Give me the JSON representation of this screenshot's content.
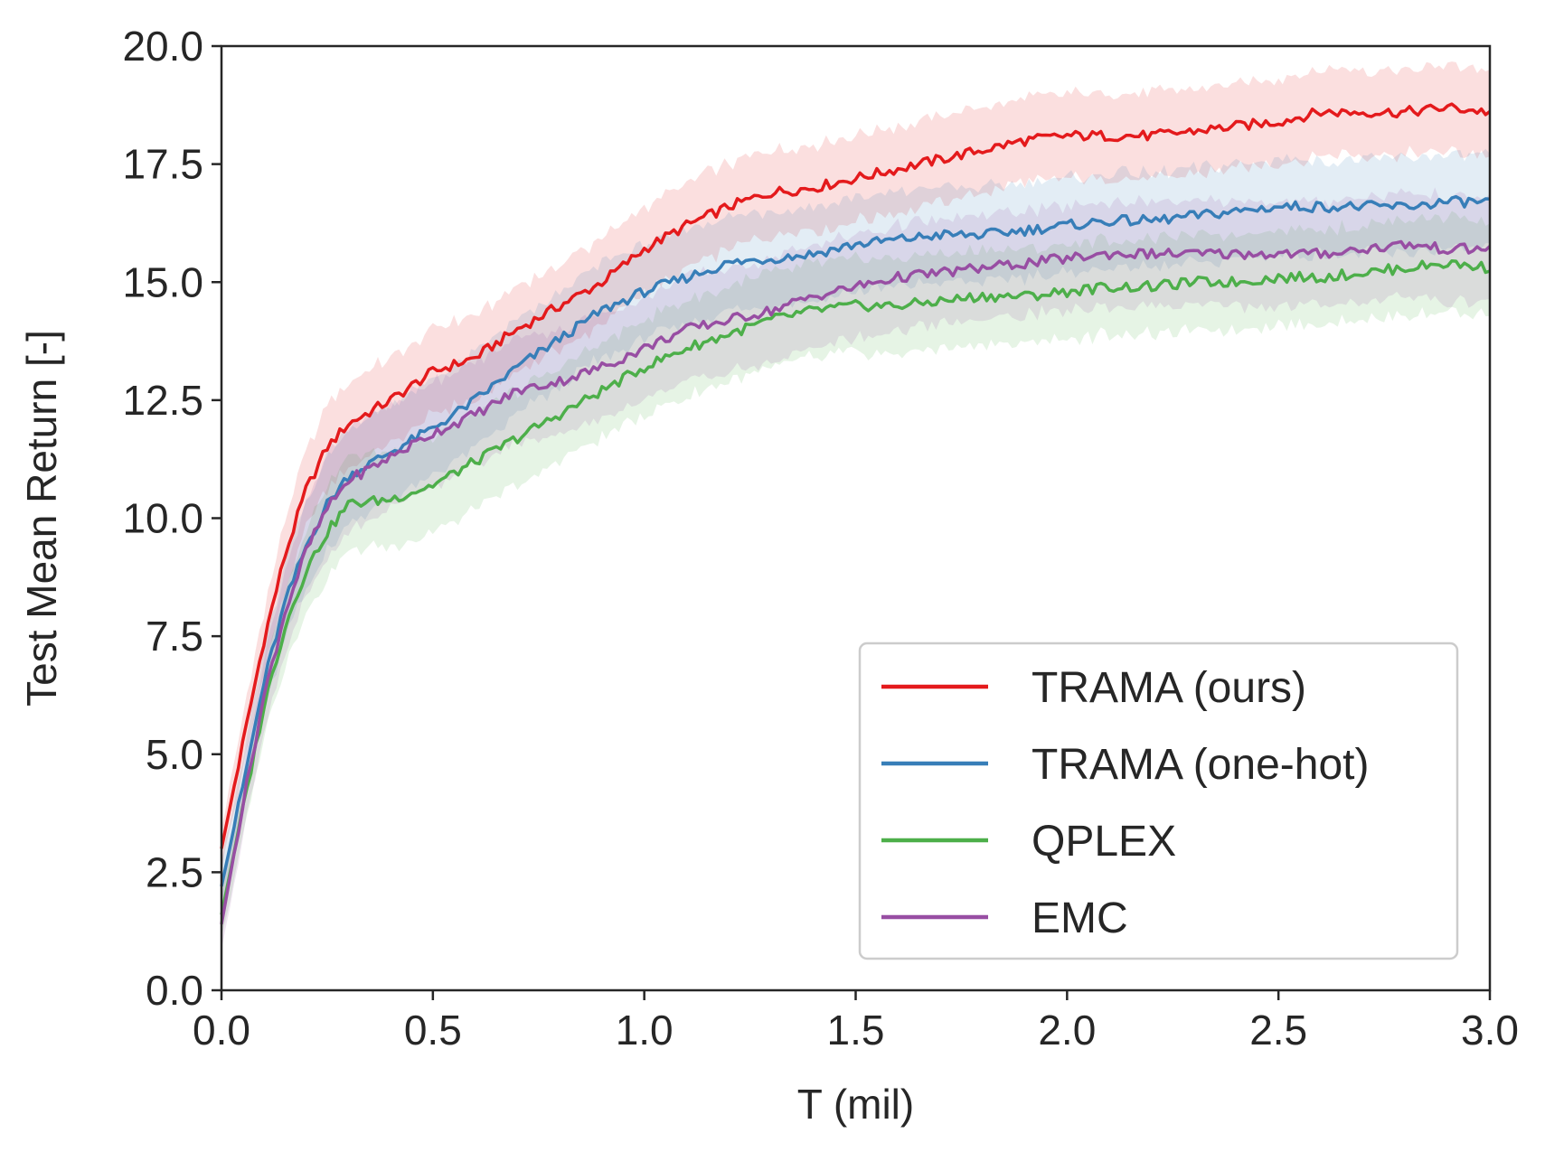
{
  "chart_data": {
    "type": "line",
    "xlabel": "T (mil)",
    "ylabel": "Test Mean Return [-]",
    "xlim": [
      0.0,
      3.0
    ],
    "ylim": [
      0.0,
      20.0
    ],
    "x_ticks": [
      "0.0",
      "0.5",
      "1.0",
      "1.5",
      "2.0",
      "2.5",
      "3.0"
    ],
    "y_ticks": [
      "0.0",
      "2.5",
      "5.0",
      "7.5",
      "10.0",
      "12.5",
      "15.0",
      "17.5",
      "20.0"
    ],
    "grid": false,
    "legend_position": "bottom-right",
    "x": [
      0.0,
      0.05,
      0.1,
      0.15,
      0.2,
      0.25,
      0.3,
      0.4,
      0.5,
      0.6,
      0.7,
      0.8,
      0.9,
      1.0,
      1.1,
      1.2,
      1.3,
      1.4,
      1.5,
      1.6,
      1.7,
      1.8,
      1.9,
      2.0,
      2.1,
      2.2,
      2.3,
      2.4,
      2.5,
      2.6,
      2.7,
      2.8,
      2.9,
      3.0
    ],
    "series": [
      {
        "name": "TRAMA (ours)",
        "color": "#e41a1c",
        "values": [
          3.0,
          5.2,
          7.4,
          9.2,
          10.6,
          11.5,
          12.0,
          12.5,
          13.1,
          13.4,
          14.0,
          14.5,
          15.0,
          15.7,
          16.2,
          16.6,
          16.9,
          17.0,
          17.2,
          17.4,
          17.6,
          17.8,
          18.0,
          18.1,
          18.1,
          18.1,
          18.2,
          18.3,
          18.4,
          18.6,
          18.6,
          18.6,
          18.7,
          18.6
        ],
        "band": 0.9
      },
      {
        "name": "TRAMA (one-hot)",
        "color": "#377eb8",
        "values": [
          2.2,
          4.3,
          6.5,
          8.2,
          9.4,
          10.3,
          10.9,
          11.4,
          11.9,
          12.5,
          13.2,
          13.8,
          14.4,
          14.8,
          15.1,
          15.4,
          15.5,
          15.6,
          15.8,
          15.9,
          16.0,
          16.0,
          16.1,
          16.2,
          16.3,
          16.3,
          16.4,
          16.5,
          16.6,
          16.6,
          16.6,
          16.6,
          16.7,
          16.7
        ],
        "band": 1.0
      },
      {
        "name": "QPLEX",
        "color": "#4daf4a",
        "values": [
          1.6,
          3.8,
          6.0,
          7.7,
          8.9,
          9.7,
          10.3,
          10.4,
          10.7,
          11.2,
          11.7,
          12.2,
          12.7,
          13.2,
          13.6,
          13.9,
          14.2,
          14.4,
          14.5,
          14.5,
          14.6,
          14.7,
          14.7,
          14.8,
          14.9,
          14.9,
          15.0,
          15.0,
          15.1,
          15.1,
          15.2,
          15.3,
          15.4,
          15.3
        ],
        "band": 1.0
      },
      {
        "name": "EMC",
        "color": "#984ea3",
        "values": [
          1.4,
          3.9,
          6.2,
          8.0,
          9.3,
          10.2,
          10.8,
          11.3,
          11.8,
          12.2,
          12.7,
          12.9,
          13.2,
          13.6,
          14.0,
          14.2,
          14.4,
          14.7,
          14.9,
          15.1,
          15.2,
          15.3,
          15.4,
          15.5,
          15.6,
          15.6,
          15.6,
          15.6,
          15.6,
          15.6,
          15.7,
          15.8,
          15.7,
          15.7
        ],
        "band": 1.1
      }
    ]
  }
}
